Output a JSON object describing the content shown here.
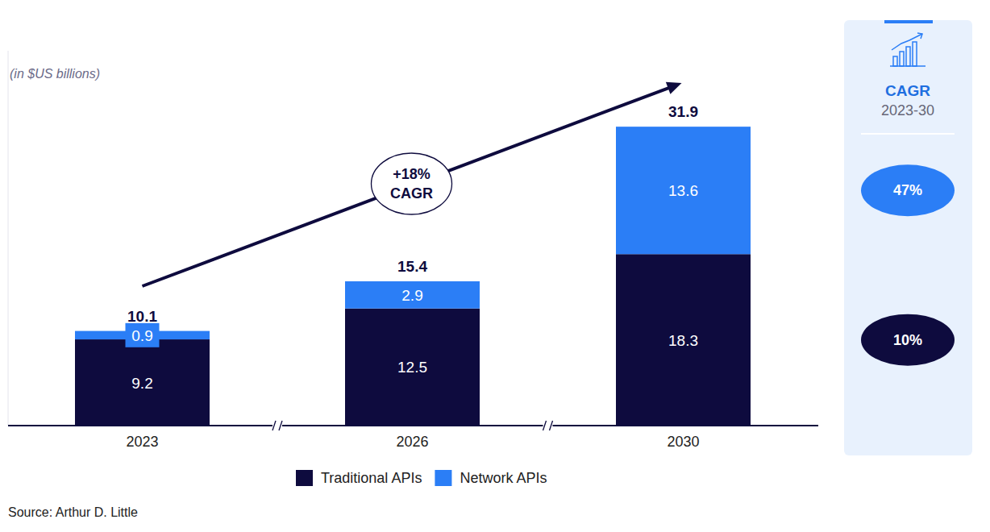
{
  "chart_data": {
    "type": "bar",
    "subtitle": "(in $US billions)",
    "categories": [
      "2023",
      "2026",
      "2030"
    ],
    "series": [
      {
        "name": "Traditional APIs",
        "color": "#0e0b3e",
        "values": [
          9.2,
          12.5,
          18.3
        ]
      },
      {
        "name": "Network APIs",
        "color": "#2b7ef6",
        "values": [
          0.9,
          2.9,
          13.6
        ]
      }
    ],
    "totals": [
      10.1,
      15.4,
      31.9
    ],
    "stacked": true,
    "data_labels": true,
    "tick_labels": "x",
    "grid": false,
    "legend": "bottom",
    "ylim": [
      0,
      40
    ],
    "yticks": [],
    "annotation": {
      "lines": [
        "+18%",
        "CAGR"
      ]
    },
    "cagr": {
      "title": "CAGR",
      "period": "2023-30",
      "values": [
        10,
        47
      ],
      "value_labels": [
        "10%",
        "47%"
      ]
    },
    "source": "Source: Arthur D. Little"
  }
}
